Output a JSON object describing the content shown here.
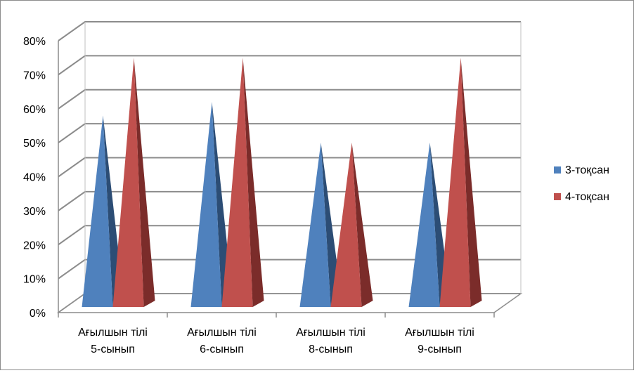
{
  "chart_data": {
    "type": "bar",
    "style": "3d-pyramid",
    "title": "",
    "xlabel": "",
    "ylabel": "",
    "ylim": [
      0,
      80
    ],
    "y_ticks": [
      "0%",
      "10%",
      "20%",
      "30%",
      "40%",
      "50%",
      "60%",
      "70%",
      "80%"
    ],
    "grid": true,
    "legend_position": "right",
    "categories": [
      [
        "Ағылшын  тілі",
        "5-сынып"
      ],
      [
        "Ағылшын  тілі",
        "6-сынып"
      ],
      [
        "Ағылшын  тілі",
        "8-сынып"
      ],
      [
        "Ағылшын  тілі",
        "9-сынып"
      ]
    ],
    "series": [
      {
        "name": "3-тоқсан",
        "values": [
          58,
          62,
          50,
          50
        ],
        "color": "#4f81bd",
        "shade": "#2c4d75"
      },
      {
        "name": "4-тоқсан",
        "values": [
          75,
          75,
          50,
          75
        ],
        "color": "#c0504d",
        "shade": "#7b2c2a"
      }
    ]
  }
}
